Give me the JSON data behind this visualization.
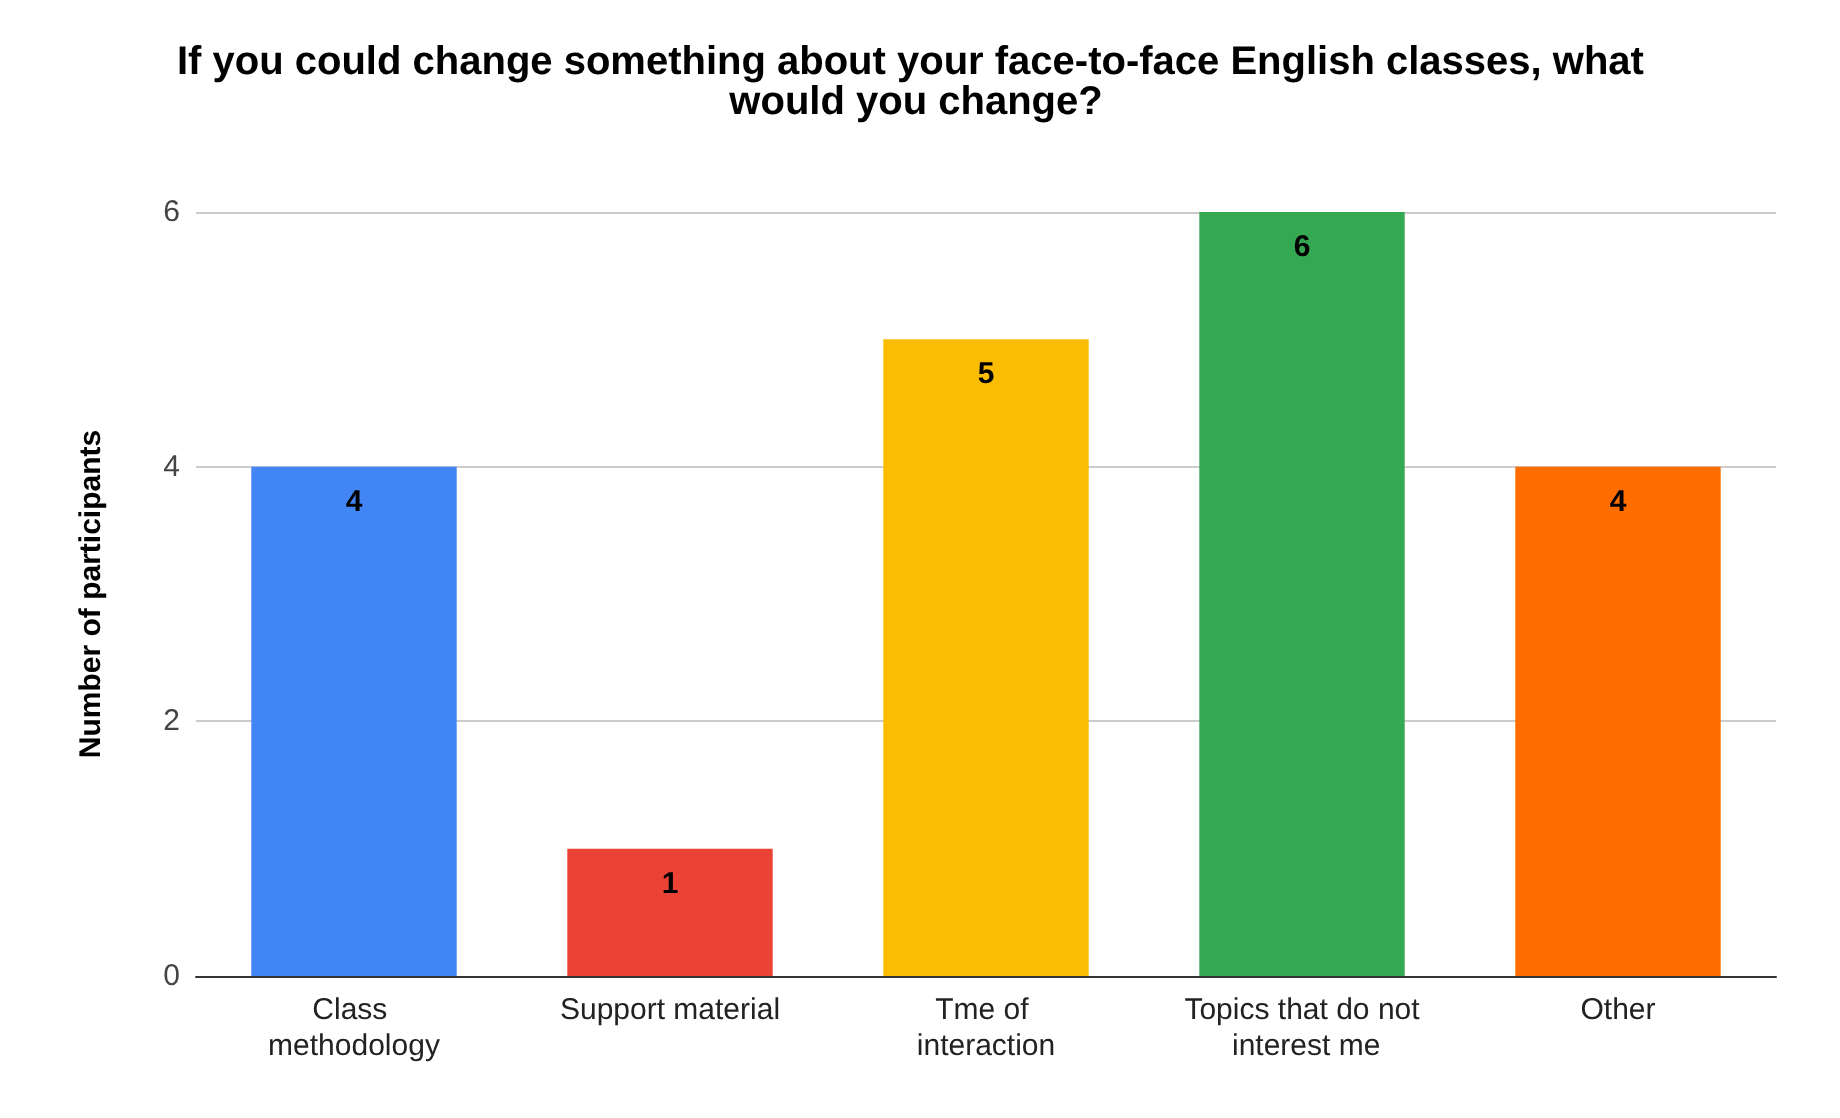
{
  "chart_data": {
    "type": "bar",
    "title": "If you could change something about your face-to-face English classes, what would you change?",
    "ylabel": "Number of participants",
    "categories": [
      "Class methodology",
      "Support material",
      "Tme of interaction",
      "Topics that do not interest me",
      "Other"
    ],
    "values": [
      4,
      1,
      5,
      6,
      4
    ],
    "colors": [
      "#4285f4",
      "#ea4335",
      "#fbbc04",
      "#34a853",
      "#ff6d01"
    ],
    "ylim": [
      0,
      6
    ],
    "yticks": [
      0,
      2,
      4,
      6
    ],
    "grid": "y",
    "data_labels": true
  }
}
